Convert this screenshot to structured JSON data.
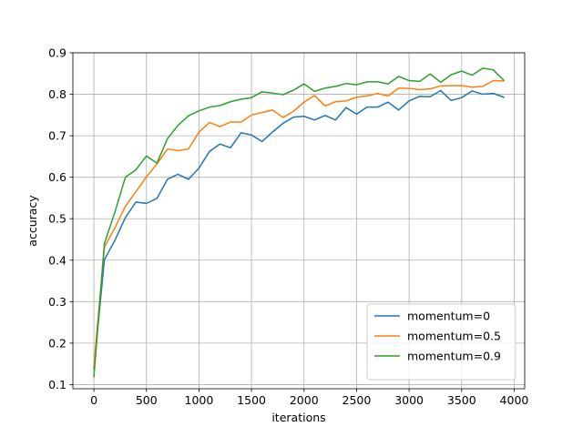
{
  "chart_data": {
    "type": "line",
    "title": "",
    "xlabel": "iterations",
    "ylabel": "accuracy",
    "xlim": [
      -200,
      4100
    ],
    "ylim": [
      0.09,
      0.9
    ],
    "xticks": [
      0,
      500,
      1000,
      1500,
      2000,
      2500,
      3000,
      3500,
      4000
    ],
    "yticks": [
      0.1,
      0.2,
      0.3,
      0.4,
      0.5,
      0.6,
      0.7,
      0.8,
      0.9
    ],
    "xtick_labels": [
      "0",
      "500",
      "1000",
      "1500",
      "2000",
      "2500",
      "3000",
      "3500",
      "4000"
    ],
    "ytick_labels": [
      "0.1",
      "0.2",
      "0.3",
      "0.4",
      "0.5",
      "0.6",
      "0.7",
      "0.8",
      "0.9"
    ],
    "grid": true,
    "legend_position": "bottom-right",
    "x": [
      0,
      100,
      200,
      300,
      400,
      500,
      600,
      700,
      800,
      900,
      1000,
      1100,
      1200,
      1300,
      1400,
      1500,
      1600,
      1700,
      1800,
      1900,
      2000,
      2100,
      2200,
      2300,
      2400,
      2500,
      2600,
      2700,
      2800,
      2900,
      3000,
      3100,
      3200,
      3300,
      3400,
      3500,
      3600,
      3700,
      3800,
      3900
    ],
    "series": [
      {
        "name": "momentum=0",
        "color": "#1f77b4",
        "values": [
          0.14,
          0.401,
          0.448,
          0.503,
          0.54,
          0.537,
          0.549,
          0.595,
          0.607,
          0.595,
          0.622,
          0.662,
          0.68,
          0.671,
          0.707,
          0.702,
          0.686,
          0.709,
          0.73,
          0.745,
          0.747,
          0.738,
          0.749,
          0.738,
          0.768,
          0.752,
          0.769,
          0.769,
          0.781,
          0.762,
          0.784,
          0.795,
          0.794,
          0.809,
          0.785,
          0.792,
          0.808,
          0.8,
          0.802,
          0.793
        ]
      },
      {
        "name": "momentum=0.5",
        "color": "#ff7f0e",
        "values": [
          0.145,
          0.432,
          0.478,
          0.53,
          0.565,
          0.601,
          0.632,
          0.668,
          0.664,
          0.668,
          0.709,
          0.732,
          0.722,
          0.733,
          0.733,
          0.75,
          0.756,
          0.762,
          0.744,
          0.759,
          0.781,
          0.797,
          0.772,
          0.782,
          0.784,
          0.793,
          0.796,
          0.802,
          0.796,
          0.815,
          0.814,
          0.811,
          0.813,
          0.82,
          0.821,
          0.821,
          0.817,
          0.819,
          0.833,
          0.832
        ]
      },
      {
        "name": "momentum=0.9",
        "color": "#2ca02c",
        "values": [
          0.119,
          0.44,
          0.516,
          0.6,
          0.618,
          0.651,
          0.634,
          0.693,
          0.725,
          0.748,
          0.76,
          0.769,
          0.773,
          0.782,
          0.788,
          0.792,
          0.806,
          0.803,
          0.799,
          0.81,
          0.825,
          0.807,
          0.815,
          0.819,
          0.826,
          0.823,
          0.83,
          0.83,
          0.825,
          0.843,
          0.833,
          0.831,
          0.849,
          0.829,
          0.847,
          0.856,
          0.846,
          0.863,
          0.859,
          0.834
        ]
      }
    ]
  }
}
